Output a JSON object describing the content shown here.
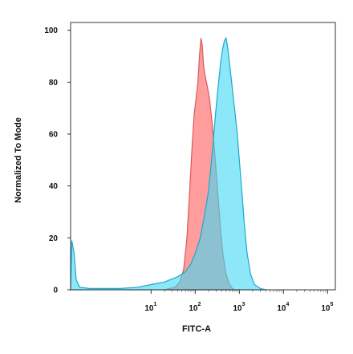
{
  "chart_data": {
    "type": "area",
    "xlabel": "FITC-A",
    "ylabel": "Normalized To Mode",
    "x_scale": "log",
    "xlim": [
      0.15,
      150000
    ],
    "ylim": [
      0,
      103
    ],
    "y_ticks": [
      "0",
      "20",
      "40",
      "60",
      "80",
      "100"
    ],
    "x_ticks": [
      {
        "base": "10",
        "exp": "1"
      },
      {
        "base": "10",
        "exp": "2"
      },
      {
        "base": "10",
        "exp": "3"
      },
      {
        "base": "10",
        "exp": "4"
      },
      {
        "base": "10",
        "exp": "5"
      }
    ],
    "grid": false,
    "series": [
      {
        "color": "#ff8c8c",
        "stroke": "#d85a5a",
        "points": [
          [
            20,
            0
          ],
          [
            35,
            1
          ],
          [
            45,
            3
          ],
          [
            55,
            8
          ],
          [
            65,
            20
          ],
          [
            75,
            38
          ],
          [
            85,
            55
          ],
          [
            95,
            68
          ],
          [
            105,
            74
          ],
          [
            115,
            80
          ],
          [
            125,
            90
          ],
          [
            135,
            97
          ],
          [
            145,
            94
          ],
          [
            155,
            86
          ],
          [
            170,
            82
          ],
          [
            190,
            78
          ],
          [
            210,
            74
          ],
          [
            240,
            65
          ],
          [
            270,
            55
          ],
          [
            300,
            45
          ],
          [
            340,
            33
          ],
          [
            380,
            22
          ],
          [
            430,
            13
          ],
          [
            500,
            6
          ],
          [
            600,
            2
          ],
          [
            700,
            0.5
          ],
          [
            800,
            0
          ]
        ]
      },
      {
        "color": "#40d8f4",
        "stroke": "#1aa9cc",
        "points": [
          [
            0.15,
            0
          ],
          [
            0.16,
            19
          ],
          [
            0.18,
            14
          ],
          [
            0.2,
            4
          ],
          [
            0.24,
            1
          ],
          [
            0.4,
            0.5
          ],
          [
            2,
            0.5
          ],
          [
            5,
            1
          ],
          [
            10,
            2
          ],
          [
            20,
            3
          ],
          [
            40,
            5
          ],
          [
            60,
            7
          ],
          [
            80,
            10
          ],
          [
            100,
            14
          ],
          [
            130,
            20
          ],
          [
            160,
            28
          ],
          [
            200,
            38
          ],
          [
            250,
            55
          ],
          [
            290,
            68
          ],
          [
            330,
            78
          ],
          [
            380,
            88
          ],
          [
            420,
            93
          ],
          [
            460,
            96
          ],
          [
            500,
            97
          ],
          [
            550,
            93
          ],
          [
            620,
            85
          ],
          [
            700,
            77
          ],
          [
            800,
            68
          ],
          [
            900,
            60
          ],
          [
            1000,
            50
          ],
          [
            1150,
            37
          ],
          [
            1300,
            25
          ],
          [
            1500,
            14
          ],
          [
            1800,
            6
          ],
          [
            2200,
            2
          ],
          [
            3000,
            0.5
          ],
          [
            4000,
            0
          ]
        ]
      }
    ]
  }
}
